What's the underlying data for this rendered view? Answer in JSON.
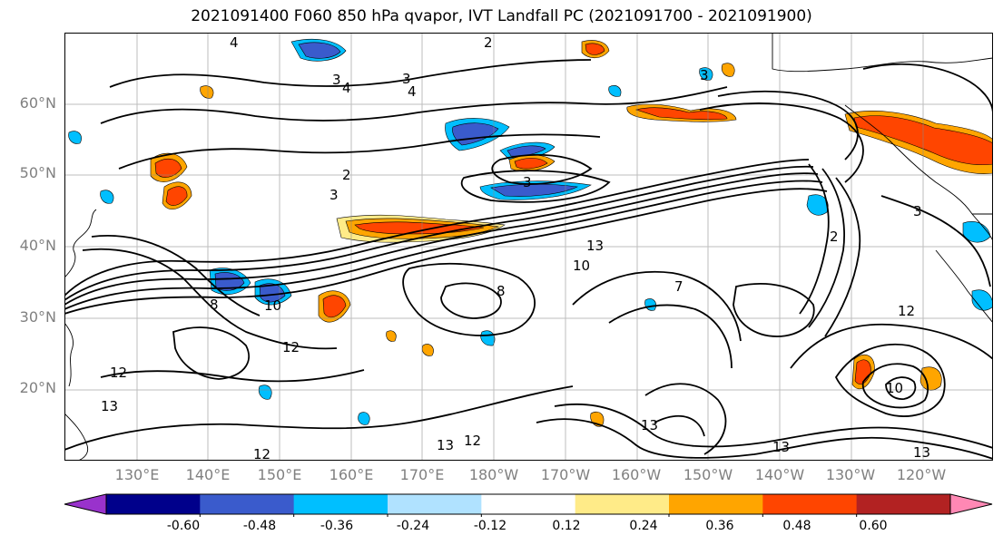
{
  "title": "2021091400 F060 850 hPa qvapor, IVT Landfall PC (2021091700 - 2021091900)",
  "lat_labels": [
    "60°N",
    "50°N",
    "40°N",
    "30°N",
    "20°N"
  ],
  "lon_labels": [
    "130°E",
    "140°E",
    "150°E",
    "160°E",
    "170°E",
    "180°W",
    "170°W",
    "160°W",
    "150°W",
    "140°W",
    "130°W",
    "120°W"
  ],
  "contour_labels": [
    "2",
    "3",
    "3",
    "4",
    "4",
    "3",
    "2",
    "3",
    "3",
    "13",
    "10",
    "10",
    "12",
    "13",
    "12",
    "12",
    "13",
    "12",
    "13",
    "13",
    "13",
    "10",
    "12",
    "8",
    "8",
    "2",
    "3",
    "7",
    "4"
  ],
  "colorbar": {
    "colors": [
      "#9932cc",
      "#00008b",
      "#3a5bcc",
      "#00bfff",
      "#b0e2ff",
      "#ffffff",
      "#ffeb88",
      "#ffa500",
      "#ff4500",
      "#b22222",
      "#ff88b4"
    ],
    "tick_labels": [
      "-0.60",
      "-0.48",
      "-0.36",
      "-0.24",
      "-0.12",
      "0.12",
      "0.24",
      "0.36",
      "0.48",
      "0.60"
    ]
  }
}
